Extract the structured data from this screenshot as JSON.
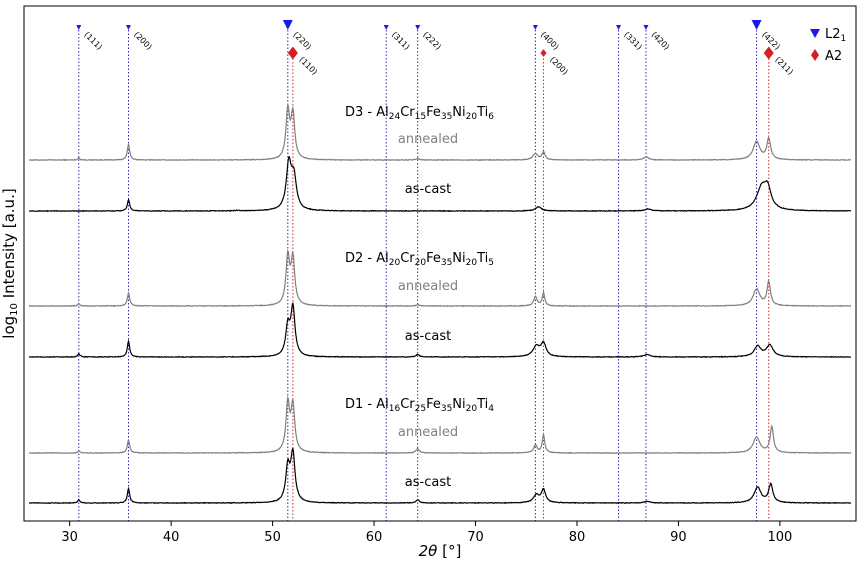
{
  "chart_data": {
    "type": "line",
    "xlabel_main": "2θ",
    "xlabel_unit": " [°]",
    "ylabel_pre": "log",
    "ylabel_sub": "10",
    "ylabel_post": " Intensity [a.u.]",
    "xlim": [
      25.5,
      107.5
    ],
    "xticks": [
      30,
      40,
      50,
      60,
      70,
      80,
      90,
      100
    ],
    "tick_labels": [
      "30",
      "40",
      "50",
      "60",
      "70",
      "80",
      "90",
      "100"
    ],
    "yticks": false,
    "legend": {
      "placement": "top-right",
      "entries": [
        {
          "label_main": "L2",
          "label_sub": "1",
          "marker": "triangle-down",
          "color": "#1a1ae6"
        },
        {
          "label_main": "A2",
          "label_sub": "",
          "marker": "diamond",
          "color": "#d62020"
        }
      ]
    },
    "reference_lines": {
      "L21": [
        {
          "x": 30.9,
          "label": "(111)",
          "marker": "small"
        },
        {
          "x": 35.8,
          "label": "(200)",
          "marker": "small"
        },
        {
          "x": 51.5,
          "label": "(220)",
          "marker": "big"
        },
        {
          "x": 61.2,
          "label": "(311)",
          "marker": "small"
        },
        {
          "x": 64.3,
          "label": "(222)",
          "marker": "small"
        },
        {
          "x": 75.9,
          "label": "(400)",
          "marker": "small"
        },
        {
          "x": 84.1,
          "label": "(331)",
          "marker": "small"
        },
        {
          "x": 86.8,
          "label": "(420)",
          "marker": "small"
        },
        {
          "x": 97.7,
          "label": "(422)",
          "marker": "big"
        }
      ],
      "A2": [
        {
          "x": 52.0,
          "label": "(110)",
          "marker": "big"
        },
        {
          "x": 76.7,
          "label": "(200)",
          "marker": "small"
        },
        {
          "x": 98.9,
          "label": "(211)",
          "marker": "big"
        }
      ]
    },
    "groups": [
      {
        "alloy_prefix": "D3 - Al",
        "parts": [
          [
            "24",
            "Cr"
          ],
          [
            "15",
            "Fe"
          ],
          [
            "35",
            "Ni"
          ],
          [
            "20",
            "Ti"
          ],
          [
            "6",
            ""
          ]
        ]
      },
      {
        "alloy_prefix": "D2 - Al",
        "parts": [
          [
            "20",
            "Cr"
          ],
          [
            "20",
            "Fe"
          ],
          [
            "35",
            "Ni"
          ],
          [
            "20",
            "Ti"
          ],
          [
            "5",
            ""
          ]
        ]
      },
      {
        "alloy_prefix": "D1 - Al",
        "parts": [
          [
            "16",
            "Cr"
          ],
          [
            "25",
            "Fe"
          ],
          [
            "35",
            "Ni"
          ],
          [
            "20",
            "Ti"
          ],
          [
            "4",
            ""
          ]
        ]
      }
    ],
    "series": [
      {
        "name": "annealed",
        "group": 0,
        "color": "#808080",
        "peaks": [
          [
            30.9,
            0.04,
            0.12
          ],
          [
            35.8,
            0.3,
            0.14
          ],
          [
            51.5,
            0.92,
            0.22
          ],
          [
            52.0,
            0.85,
            0.22
          ],
          [
            64.3,
            0.03,
            0.15
          ],
          [
            75.9,
            0.12,
            0.3
          ],
          [
            76.7,
            0.15,
            0.18
          ],
          [
            86.8,
            0.06,
            0.3
          ],
          [
            97.7,
            0.35,
            0.4
          ],
          [
            98.9,
            0.4,
            0.22
          ]
        ]
      },
      {
        "name": "as-cast",
        "group": 0,
        "color": "#000000",
        "peaks": [
          [
            35.8,
            0.22,
            0.14
          ],
          [
            46.5,
            0.01,
            0.3
          ],
          [
            51.6,
            0.88,
            0.3
          ],
          [
            52.1,
            0.6,
            0.3
          ],
          [
            76.2,
            0.08,
            0.35
          ],
          [
            87.0,
            0.04,
            0.35
          ],
          [
            98.2,
            0.42,
            0.6
          ],
          [
            98.8,
            0.35,
            0.4
          ]
        ]
      },
      {
        "name": "annealed",
        "group": 1,
        "color": "#808080",
        "peaks": [
          [
            30.9,
            0.05,
            0.12
          ],
          [
            35.8,
            0.25,
            0.14
          ],
          [
            51.5,
            0.92,
            0.22
          ],
          [
            52.0,
            0.88,
            0.22
          ],
          [
            64.3,
            0.03,
            0.15
          ],
          [
            75.9,
            0.18,
            0.2
          ],
          [
            76.7,
            0.25,
            0.15
          ],
          [
            97.7,
            0.32,
            0.4
          ],
          [
            98.9,
            0.45,
            0.2
          ]
        ]
      },
      {
        "name": "as-cast",
        "group": 1,
        "color": "#000000",
        "peaks": [
          [
            30.9,
            0.06,
            0.14
          ],
          [
            35.8,
            0.3,
            0.14
          ],
          [
            51.5,
            0.55,
            0.25
          ],
          [
            52.0,
            0.92,
            0.25
          ],
          [
            64.3,
            0.05,
            0.2
          ],
          [
            76.0,
            0.2,
            0.4
          ],
          [
            76.7,
            0.25,
            0.3
          ],
          [
            86.9,
            0.05,
            0.35
          ],
          [
            97.8,
            0.2,
            0.4
          ],
          [
            99.0,
            0.22,
            0.4
          ]
        ]
      },
      {
        "name": "annealed",
        "group": 2,
        "color": "#808080",
        "peaks": [
          [
            30.9,
            0.04,
            0.12
          ],
          [
            35.8,
            0.25,
            0.14
          ],
          [
            51.5,
            0.92,
            0.22
          ],
          [
            52.0,
            0.88,
            0.22
          ],
          [
            64.3,
            0.08,
            0.2
          ],
          [
            75.9,
            0.15,
            0.2
          ],
          [
            76.7,
            0.35,
            0.15
          ],
          [
            97.7,
            0.3,
            0.4
          ],
          [
            99.2,
            0.5,
            0.2
          ]
        ]
      },
      {
        "name": "as-cast",
        "group": 2,
        "color": "#000000",
        "peaks": [
          [
            30.9,
            0.06,
            0.14
          ],
          [
            35.8,
            0.28,
            0.14
          ],
          [
            51.5,
            0.65,
            0.25
          ],
          [
            52.0,
            0.92,
            0.25
          ],
          [
            64.3,
            0.06,
            0.2
          ],
          [
            76.0,
            0.15,
            0.35
          ],
          [
            76.7,
            0.25,
            0.25
          ],
          [
            86.9,
            0.03,
            0.35
          ],
          [
            97.8,
            0.3,
            0.4
          ],
          [
            99.1,
            0.35,
            0.25
          ]
        ]
      }
    ]
  }
}
